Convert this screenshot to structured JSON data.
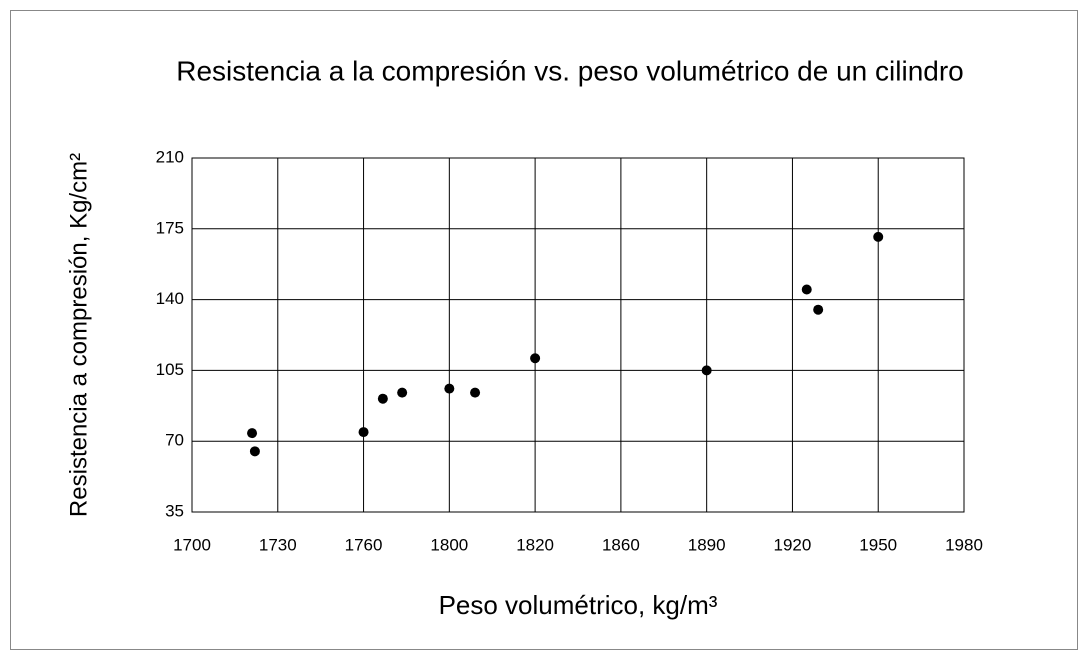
{
  "chart_data": {
    "type": "scatter",
    "title": "Resistencia a la compresión vs. peso volumétrico de un cilindro",
    "x_label": "Peso volumétrico, kg/m³",
    "y_label": "Resistencia a compresión, Kg/cm²",
    "series": [
      {
        "color": "#000000",
        "x": [
          1721,
          1722,
          1760,
          1769,
          1778,
          1800,
          1806,
          1820,
          1890,
          1925,
          1929,
          1950
        ],
        "values": [
          74,
          65,
          74.5,
          91,
          94,
          96,
          94,
          111,
          105,
          145,
          135,
          171
        ]
      }
    ],
    "xlim": [
      1700,
      1980
    ],
    "xticks": [
      1700,
      1730,
      1760,
      1800,
      1820,
      1860,
      1890,
      1920,
      1950,
      1980
    ],
    "ylim": [
      35,
      210
    ],
    "yticks": [
      35,
      70,
      105,
      140,
      175,
      210
    ],
    "grid": true
  }
}
